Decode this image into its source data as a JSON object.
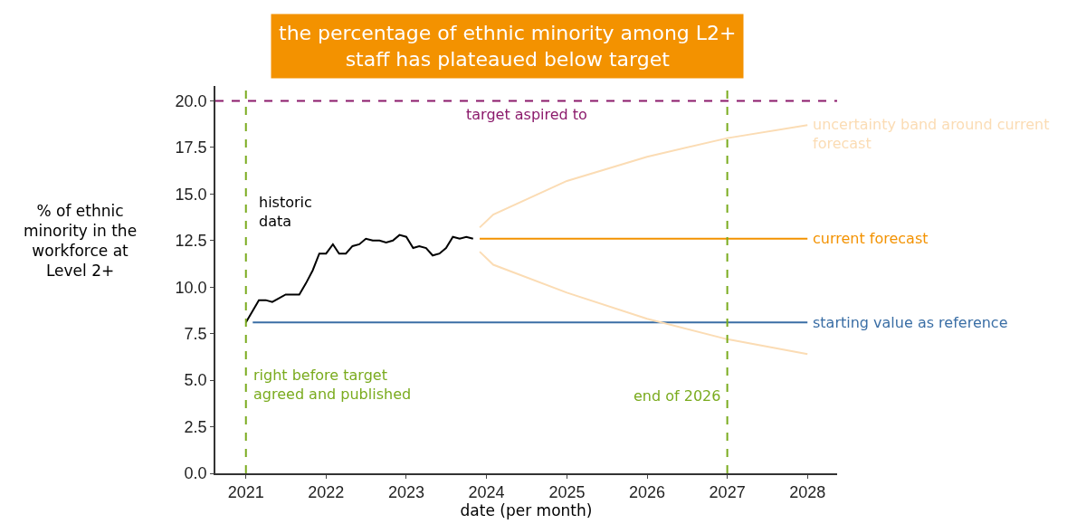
{
  "chart_data": {
    "type": "line",
    "title": "the percentage of ethnic minority among L2+ staff has plateaued below target",
    "xlabel": "date (per month)",
    "ylabel": "% of ethnic minority in the workforce at Level 2+",
    "series": [
      {
        "name": "historic data",
        "color": "#000000",
        "x": [
          "2021-01",
          "2021-03",
          "2021-04",
          "2021-05",
          "2021-07",
          "2021-09",
          "2021-10",
          "2021-11",
          "2021-12",
          "2022-01",
          "2022-02",
          "2022-03",
          "2022-04",
          "2022-05",
          "2022-06",
          "2022-07",
          "2022-08",
          "2022-09",
          "2022-10",
          "2022-11",
          "2022-12",
          "2023-01",
          "2023-02",
          "2023-03",
          "2023-04",
          "2023-05",
          "2023-06",
          "2023-07",
          "2023-08",
          "2023-09",
          "2023-10",
          "2023-11"
        ],
        "values": [
          8.1,
          9.3,
          9.3,
          9.2,
          9.6,
          9.6,
          10.2,
          10.9,
          11.8,
          11.8,
          12.3,
          11.8,
          11.8,
          12.2,
          12.3,
          12.6,
          12.5,
          12.5,
          12.4,
          12.5,
          12.8,
          12.7,
          12.1,
          12.2,
          12.1,
          11.7,
          11.8,
          12.1,
          12.7,
          12.6,
          12.7,
          12.6
        ]
      },
      {
        "name": "current forecast",
        "color": "#f39200",
        "x": [
          "2023-12",
          "2028-01"
        ],
        "values": [
          12.6,
          12.6
        ]
      },
      {
        "name": "starting value as reference",
        "color": "#3a6ea5",
        "x": [
          "2021-02",
          "2028-01"
        ],
        "values": [
          8.1,
          8.1
        ]
      },
      {
        "name": "uncertainty band around current forecast",
        "color": "#fbdcb4",
        "x": [
          "2023-12",
          "2024-02",
          "2025-01",
          "2026-01",
          "2027-01",
          "2028-01"
        ],
        "values": [
          13.2,
          13.9,
          15.7,
          17.0,
          18.0,
          18.7
        ]
      },
      {
        "color": "#fbdcb4",
        "x": [
          "2023-12",
          "2024-02",
          "2025-01",
          "2026-01",
          "2027-01",
          "2028-01"
        ],
        "values": [
          11.9,
          11.2,
          9.7,
          8.3,
          7.2,
          6.4
        ]
      }
    ],
    "ref_lines": [
      {
        "axis": "y",
        "value": 20,
        "label": "target aspired to",
        "color": "#8b1a6b",
        "line_style": "dashed"
      },
      {
        "axis": "x",
        "value": "2021-01",
        "label": "right before target agreed and published",
        "color": "#7aab1e",
        "line_style": "dashed"
      },
      {
        "axis": "x",
        "value": "2027-01",
        "label": "end of 2026",
        "color": "#7aab1e",
        "line_style": "dashed"
      }
    ],
    "xlim": [
      "2020-08-15",
      "2028-05-15"
    ],
    "xticks": [
      "2021",
      "2022",
      "2023",
      "2024",
      "2025",
      "2026",
      "2027",
      "2028"
    ],
    "ylim": [
      0,
      20.8
    ],
    "yticks": [
      {
        "value": 0,
        "label": "0.0"
      },
      {
        "value": 2.5,
        "label": "2.5"
      },
      {
        "value": 5,
        "label": "5.0"
      },
      {
        "value": 7.5,
        "label": "7.5"
      },
      {
        "value": 10,
        "label": "10.0"
      },
      {
        "value": 12.5,
        "label": "12.5"
      },
      {
        "value": 15,
        "label": "15.0"
      },
      {
        "value": 17.5,
        "label": "17.5"
      },
      {
        "value": 20,
        "label": "20.0"
      }
    ],
    "legend": false,
    "marker": "none",
    "line_style": "solid"
  }
}
